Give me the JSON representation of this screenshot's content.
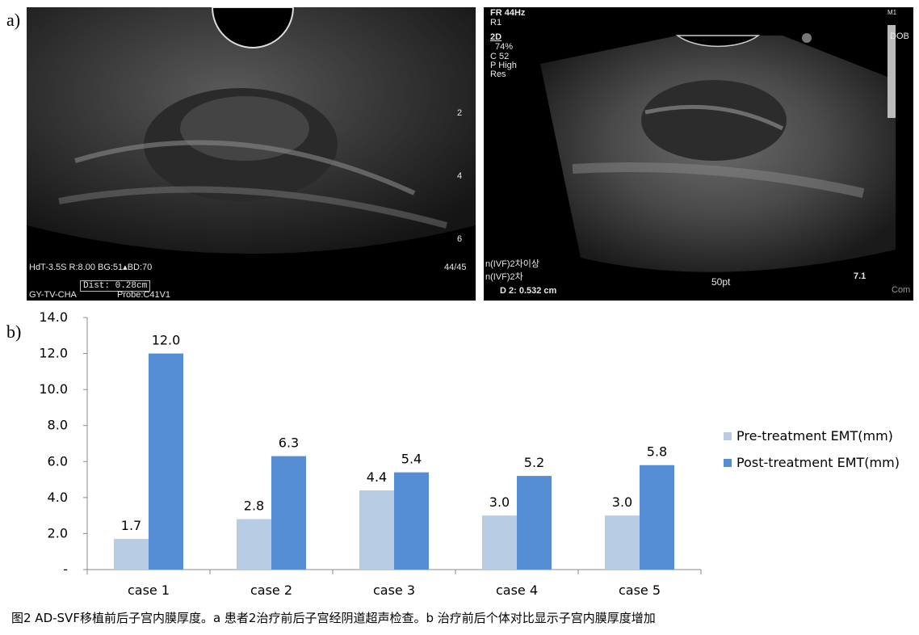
{
  "figure": {
    "label_a": "a)",
    "label_b": "b)",
    "caption": "图2 AD-SVF移植前后子宫内膜厚度。a 患者2治疗前后子宫经阴道超声检查。b 治疗前后个体对比显示子宫内膜厚度增加"
  },
  "ultrasound_left": {
    "params": "HdT-3.5S    R:8.00  BG:51▴BD:70",
    "frame": "44/45",
    "label": "GY-TV-CHA",
    "probe": "Probe:C41V1",
    "dist": "Dist:  0.28cm",
    "depth_marks": [
      "2",
      "4",
      "6"
    ]
  },
  "ultrasound_right": {
    "freq": "FR 44Hz",
    "r1": "R1",
    "mode": "2D",
    "gain": "74%",
    "c": "C 52",
    "p": "P High",
    "res": "Res",
    "m1": "M1",
    "dob": "DOB",
    "text_1": "n(IVF)2차이상",
    "text_2": "n(IVF)2차",
    "dist": "D 2: 0.532 cm",
    "scale": "50pt",
    "depth": "7.1",
    "com": "Com"
  },
  "chart_data": {
    "type": "bar",
    "categories": [
      "case 1",
      "case 2",
      "case 3",
      "case 4",
      "case 5"
    ],
    "series": [
      {
        "name": "Pre-treatment EMT(mm)",
        "values": [
          1.7,
          2.8,
          4.4,
          3.0,
          3.0
        ],
        "color": "#b8cce4"
      },
      {
        "name": "Post-treatment EMT(mm)",
        "values": [
          12.0,
          6.3,
          5.4,
          5.2,
          5.8
        ],
        "color": "#558ed5"
      }
    ],
    "data_labels": [
      [
        "1.7",
        "2.8",
        "4.4",
        "3.0",
        "3.0"
      ],
      [
        "12.0",
        "6.3",
        "5.4",
        "5.2",
        "5.8"
      ]
    ],
    "yticks": [
      "-",
      "2.0",
      "4.0",
      "6.0",
      "8.0",
      "10.0",
      "12.0",
      "14.0"
    ],
    "ylim": [
      0,
      14
    ],
    "grid": false,
    "legend": "right"
  }
}
